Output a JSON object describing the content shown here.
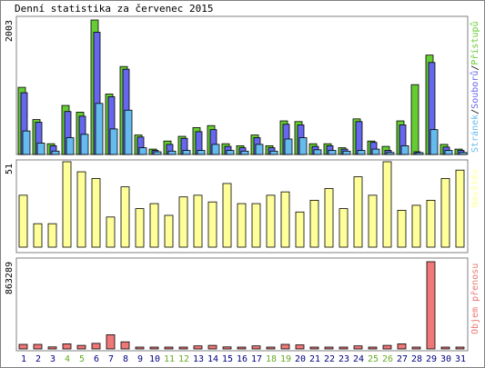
{
  "title": "Denní statistika za červenec 2015",
  "colors": {
    "hits": "#66cc33",
    "files": "#6666ee",
    "pages": "#66bbee",
    "visits": "#ffff99",
    "kbytes": "#ee7777",
    "weekend": "#66aa22",
    "weekday": "#000080"
  },
  "chart_data": [
    {
      "type": "bar",
      "max_label": "2003",
      "legend": {
        "pages": "Stránek",
        "files": "Souborů",
        "hits": "Přístupů",
        "sep": "/"
      },
      "series": [
        {
          "name": "Přístupů",
          "key": "hits",
          "values": [
            1000,
            520,
            160,
            730,
            630,
            2003,
            900,
            1310,
            290,
            80,
            200,
            270,
            400,
            430,
            160,
            130,
            290,
            130,
            500,
            490,
            160,
            160,
            100,
            530,
            200,
            120,
            500,
            1040,
            1480,
            150,
            80
          ]
        },
        {
          "name": "Souborů",
          "key": "files",
          "values": [
            920,
            480,
            130,
            640,
            570,
            1820,
            860,
            1270,
            260,
            60,
            150,
            240,
            340,
            370,
            120,
            100,
            250,
            100,
            450,
            440,
            120,
            130,
            80,
            490,
            180,
            60,
            440,
            40,
            1370,
            110,
            60
          ]
        },
        {
          "name": "Stránek",
          "key": "pages",
          "values": [
            350,
            170,
            50,
            250,
            300,
            760,
            380,
            660,
            100,
            40,
            50,
            60,
            60,
            150,
            60,
            50,
            150,
            50,
            230,
            250,
            70,
            60,
            50,
            60,
            80,
            30,
            130,
            20,
            370,
            60,
            30
          ]
        }
      ]
    },
    {
      "type": "bar",
      "max_label": "51",
      "legend": {
        "visits": "Návštěv"
      },
      "series": [
        {
          "name": "Návštěv",
          "key": "visits",
          "values": [
            31,
            14,
            14,
            51,
            45,
            41,
            18,
            36,
            23,
            26,
            19,
            30,
            31,
            27,
            38,
            26,
            26,
            31,
            33,
            21,
            28,
            35,
            23,
            42,
            31,
            51,
            22,
            25,
            28,
            41,
            46
          ]
        }
      ]
    },
    {
      "type": "bar",
      "max_label": "863289",
      "legend": {
        "kbytes": "Objem přenosu"
      },
      "series": [
        {
          "name": "Objem přenosu",
          "key": "kbytes",
          "values": [
            45000,
            45000,
            20000,
            50000,
            35000,
            55000,
            140000,
            70000,
            15000,
            10000,
            10000,
            15000,
            30000,
            35000,
            20000,
            15000,
            30000,
            15000,
            45000,
            40000,
            15000,
            15000,
            10000,
            30000,
            15000,
            35000,
            50000,
            15000,
            863289,
            10000,
            8000
          ]
        }
      ]
    }
  ],
  "days": [
    "1",
    "2",
    "3",
    "4",
    "5",
    "6",
    "7",
    "8",
    "9",
    "10",
    "11",
    "12",
    "13",
    "14",
    "15",
    "16",
    "17",
    "18",
    "19",
    "20",
    "21",
    "22",
    "23",
    "24",
    "25",
    "26",
    "27",
    "28",
    "29",
    "30",
    "31"
  ],
  "weekend_days": [
    "4",
    "5",
    "11",
    "12",
    "18",
    "19",
    "25",
    "26"
  ]
}
